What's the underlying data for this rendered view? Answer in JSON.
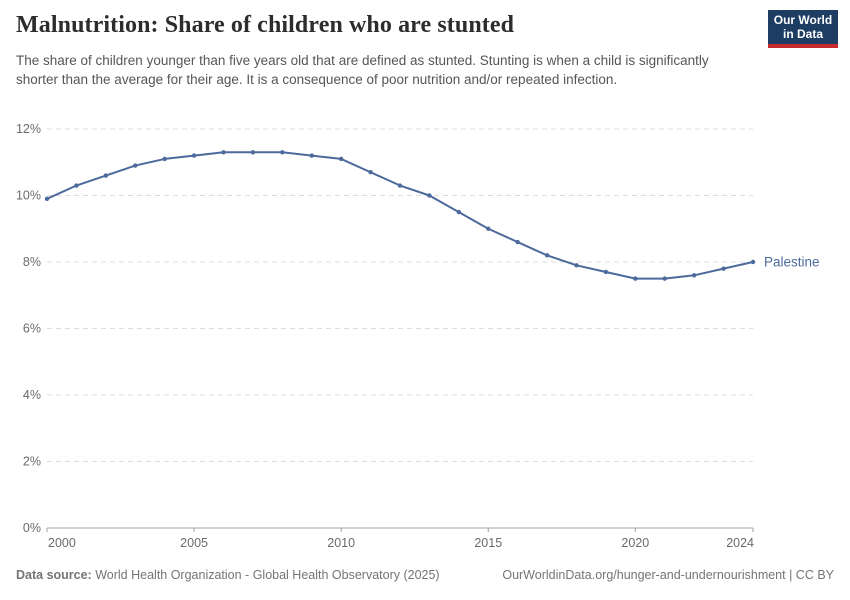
{
  "header": {
    "title": "Malnutrition: Share of children who are stunted",
    "subtitle": "The share of children younger than five years old that are defined as stunted. Stunting is when a child is significantly shorter than the average for their age. It is a consequence of poor nutrition and/or repeated infection.",
    "logo": {
      "line1": "Our World",
      "line2": "in Data"
    }
  },
  "chart_data": {
    "type": "line",
    "title": "Malnutrition: Share of children who are stunted",
    "x": [
      2000,
      2001,
      2002,
      2003,
      2004,
      2005,
      2006,
      2007,
      2008,
      2009,
      2010,
      2011,
      2012,
      2013,
      2014,
      2015,
      2016,
      2017,
      2018,
      2019,
      2020,
      2021,
      2022,
      2023,
      2024
    ],
    "series": [
      {
        "name": "Palestine",
        "values": [
          9.9,
          10.3,
          10.6,
          10.9,
          11.1,
          11.2,
          11.3,
          11.3,
          11.3,
          11.2,
          11.1,
          10.7,
          10.3,
          10.0,
          9.5,
          9.0,
          8.6,
          8.2,
          7.9,
          7.7,
          7.5,
          7.5,
          7.6,
          7.8,
          8.0
        ]
      }
    ],
    "xlabel": "",
    "ylabel": "",
    "ylim": [
      0,
      12
    ],
    "yticks": [
      0,
      2,
      4,
      6,
      8,
      10,
      12
    ],
    "ytick_suffix": "%",
    "xticks": [
      2000,
      2005,
      2010,
      2015,
      2020,
      2024
    ],
    "grid": "horizontal-dashed",
    "legend_position": "end-of-line"
  },
  "footer": {
    "source_label": "Data source:",
    "source_text": "World Health Organization - Global Health Observatory (2025)",
    "rights": "OurWorldinData.org/hunger-and-undernourishment | CC BY"
  },
  "colors": {
    "line": "#4d6a9c",
    "grid": "#dcdcdc",
    "axis": "#a3a3a3",
    "tick_label": "#6b6b6b",
    "title": "#2d2d2d",
    "subtitle": "#565656",
    "footer": "#757575",
    "logo_bg": "#1d3d63",
    "logo_stripe": "#c5292e"
  }
}
